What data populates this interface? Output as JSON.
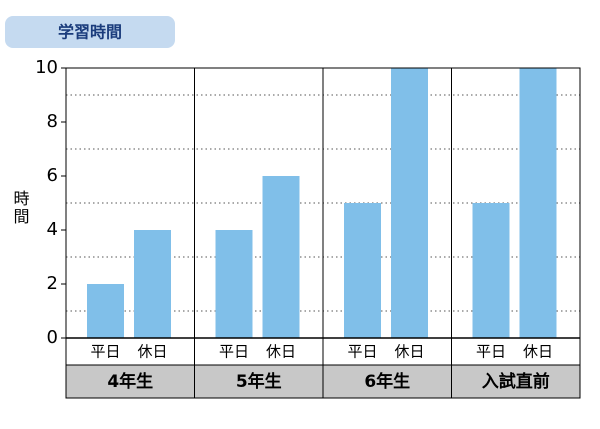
{
  "chart_data": {
    "type": "bar",
    "title": "学習時間",
    "y_label": "時間",
    "categories": [
      "4年生",
      "5年生",
      "6年生",
      "入試直前"
    ],
    "series": [
      {
        "name": "平日",
        "color": "#80bfe9",
        "values": [
          2,
          4,
          5,
          5
        ]
      },
      {
        "name": "休日",
        "color": "#80bfe9",
        "values": [
          4,
          6,
          10,
          10
        ]
      }
    ],
    "ylim": [
      0,
      10
    ],
    "yticks": [
      0,
      2,
      4,
      6,
      8,
      10
    ],
    "minor_yticks": [
      1,
      3,
      5,
      7,
      9
    ],
    "grid": true
  }
}
